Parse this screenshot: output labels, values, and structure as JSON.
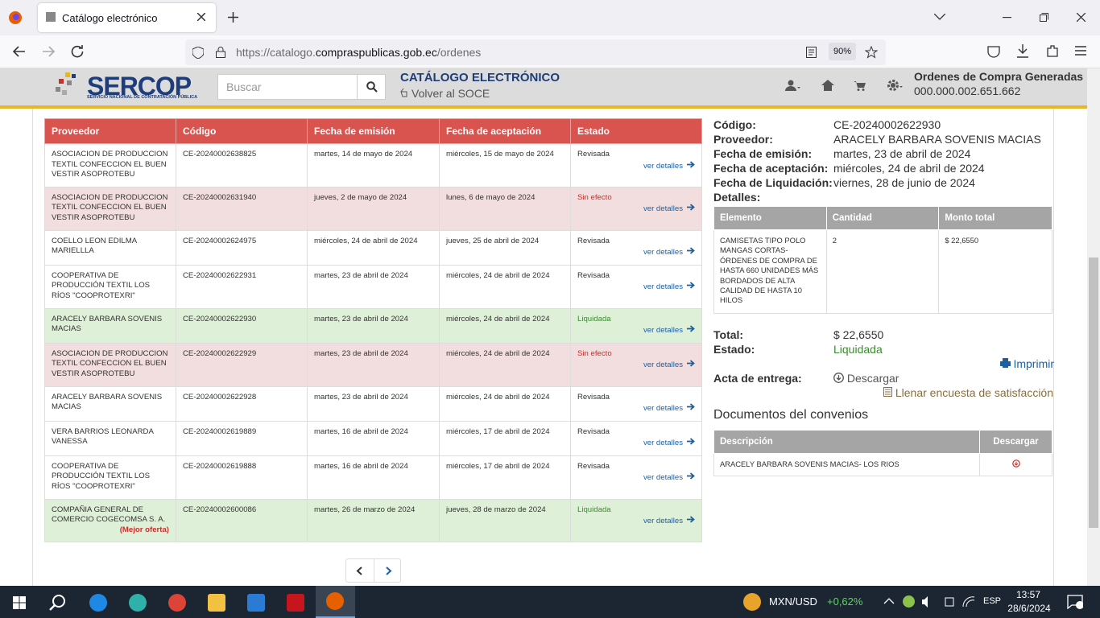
{
  "browser": {
    "tab_title": "Catálogo electrónico",
    "url_prefix": "https://catalogo.",
    "url_domain": "compraspublicas.gob.ec",
    "url_path": "/ordenes",
    "zoom": "90%"
  },
  "header": {
    "logo": "SERCOP",
    "logo_sub": "SERVICIO NACIONAL DE CONTRATACIÓN PÚBLICA",
    "search_placeholder": "Buscar",
    "title": "CATÁLOGO ELECTRÓNICO",
    "back_link": "Volver al SOCE",
    "orders_label": "Ordenes de Compra Generadas",
    "orders_value": "000.000.002.651.662"
  },
  "orders_table": {
    "headers": [
      "Proveedor",
      "Código",
      "Fecha de emisión",
      "Fecha de aceptación",
      "Estado"
    ],
    "link": "ver detalles",
    "rows": [
      {
        "proveedor": "ASOCIACION DE PRODUCCION TEXTIL CONFECCION EL BUEN VESTIR ASOPROTEBU",
        "codigo": "CE-20240002638825",
        "emision": "martes, 14 de mayo de 2024",
        "aceptacion": "miércoles, 15 de mayo de 2024",
        "estado": "Revisada",
        "color": "#ffffff",
        "status_color": "#333333"
      },
      {
        "proveedor": "ASOCIACION DE PRODUCCION TEXTIL CONFECCION EL BUEN VESTIR ASOPROTEBU",
        "codigo": "CE-20240002631940",
        "emision": "jueves, 2 de mayo de 2024",
        "aceptacion": "lunes, 6 de mayo de 2024",
        "estado": "Sin efecto",
        "color": "#f2dede",
        "status_color": "#c9302c"
      },
      {
        "proveedor": "COELLO LEON EDILMA MARIELLLA",
        "codigo": "CE-20240002624975",
        "emision": "miércoles, 24 de abril de 2024",
        "aceptacion": "jueves, 25 de abril de 2024",
        "estado": "Revisada",
        "color": "#ffffff",
        "status_color": "#333333"
      },
      {
        "proveedor": "COOPERATIVA DE PRODUCCIÓN TEXTIL LOS RÍOS \"COOPROTEXRI\"",
        "codigo": "CE-20240002622931",
        "emision": "martes, 23 de abril de 2024",
        "aceptacion": "miércoles, 24 de abril de 2024",
        "estado": "Revisada",
        "color": "#ffffff",
        "status_color": "#333333"
      },
      {
        "proveedor": "ARACELY BARBARA SOVENIS MACIAS",
        "codigo": "CE-20240002622930",
        "emision": "martes, 23 de abril de 2024",
        "aceptacion": "miércoles, 24 de abril de 2024",
        "estado": "Liquidada",
        "color": "#dff0d8",
        "status_color": "#3c8b2f"
      },
      {
        "proveedor": "ASOCIACION DE PRODUCCION TEXTIL CONFECCION EL BUEN VESTIR ASOPROTEBU",
        "codigo": "CE-20240002622929",
        "emision": "martes, 23 de abril de 2024",
        "aceptacion": "miércoles, 24 de abril de 2024",
        "estado": "Sin efecto",
        "color": "#f2dede",
        "status_color": "#c9302c"
      },
      {
        "proveedor": "ARACELY BARBARA SOVENIS MACIAS",
        "codigo": "CE-20240002622928",
        "emision": "martes, 23 de abril de 2024",
        "aceptacion": "miércoles, 24 de abril de 2024",
        "estado": "Revisada",
        "color": "#ffffff",
        "status_color": "#333333"
      },
      {
        "proveedor": "VERA BARRIOS LEONARDA VANESSA",
        "codigo": "CE-20240002619889",
        "emision": "martes, 16 de abril de 2024",
        "aceptacion": "miércoles, 17 de abril de 2024",
        "estado": "Revisada",
        "color": "#ffffff",
        "status_color": "#333333"
      },
      {
        "proveedor": "COOPERATIVA DE PRODUCCIÓN TEXTIL LOS RÍOS \"COOPROTEXRI\"",
        "codigo": "CE-20240002619888",
        "emision": "martes, 16 de abril de 2024",
        "aceptacion": "miércoles, 17 de abril de 2024",
        "estado": "Revisada",
        "color": "#ffffff",
        "status_color": "#333333"
      },
      {
        "proveedor": "COMPAÑIA GENERAL DE COMERCIO COGECOMSA S. A.",
        "note": "(Mejor oferta)",
        "codigo": "CE-20240002600086",
        "emision": "martes, 26 de marzo de 2024",
        "aceptacion": "jueves, 28 de marzo de 2024",
        "estado": "Liquidada",
        "color": "#dff0d8",
        "status_color": "#3c8b2f"
      }
    ]
  },
  "details": {
    "fields": [
      {
        "label": "Código:",
        "value": "CE-20240002622930"
      },
      {
        "label": "Proveedor:",
        "value": "ARACELY BARBARA SOVENIS MACIAS"
      },
      {
        "label": "Fecha de emisión:",
        "value": "martes, 23 de abril de 2024"
      },
      {
        "label": "Fecha de aceptación:",
        "value": "miércoles, 24 de abril de 2024"
      },
      {
        "label": "Fecha de Liquidación:",
        "value": "viernes, 28 de junio de 2024"
      }
    ],
    "detalles_label": "Detalles:",
    "items": {
      "headers": [
        "Elemento",
        "Cantidad",
        "Monto total"
      ],
      "rows": [
        [
          "CAMISETAS TIPO POLO MANGAS CORTAS- ÓRDENES DE COMPRA DE HASTA 660 UNIDADES MÁS BORDADOS DE ALTA CALIDAD DE HASTA 10 HILOS",
          "2",
          "$ 22,6550"
        ]
      ]
    },
    "total_label": "Total:",
    "total_value": "$ 22,6550",
    "estado_label": "Estado:",
    "estado_value": "Liquidada",
    "estado_color": "#3c8b2f",
    "print": "Imprimir",
    "acta_label": "Acta de entrega:",
    "acta_link": "Descargar",
    "survey": "Llenar encuesta de satisfacción",
    "docs_title": "Documentos del convenios",
    "docs": {
      "headers": [
        "Descripción",
        "Descargar"
      ],
      "rows": [
        [
          "ARACELY BARBARA SOVENIS MACIAS- LOS RIOS"
        ]
      ]
    }
  },
  "taskbar": {
    "currency": "MXN/USD",
    "change": "+0,62%",
    "lang": "ESP",
    "time": "13:57",
    "date": "28/6/2024"
  }
}
